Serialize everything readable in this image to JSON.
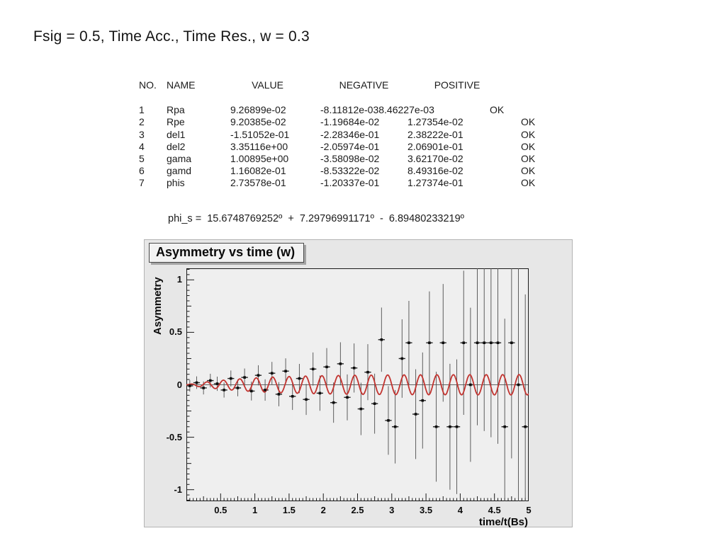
{
  "slide": {
    "title": "Fsig = 0.5, Time Acc., Time Res., w = 0.3"
  },
  "fit_table": {
    "headers": {
      "no": "NO.",
      "name": "NAME",
      "value": "VALUE",
      "negative": "NEGATIVE",
      "positive": "POSITIVE"
    },
    "rows": [
      {
        "no": "1",
        "name": "Rpa",
        "value": "9.26899e-02",
        "negative": "-8.11812e-03",
        "positive": "8.46227e-03",
        "status": "OK",
        "merged": true
      },
      {
        "no": "2",
        "name": "Rpe",
        "value": "9.20385e-02",
        "negative": "-1.19684e-02",
        "positive": "1.27354e-02",
        "status": "OK",
        "merged": false
      },
      {
        "no": "3",
        "name": "del1",
        "value": "-1.51052e-01",
        "negative": "-2.28346e-01",
        "positive": "2.38222e-01",
        "status": "OK",
        "merged": false
      },
      {
        "no": "4",
        "name": "del2",
        "value": "3.35116e+00",
        "negative": "-2.05974e-01",
        "positive": "2.06901e-01",
        "status": "OK",
        "merged": false
      },
      {
        "no": "5",
        "name": "gama",
        "value": "1.00895e+00",
        "negative": "-3.58098e-02",
        "positive": "3.62170e-02",
        "status": "OK",
        "merged": false
      },
      {
        "no": "6",
        "name": "gamd",
        "value": "1.16082e-01",
        "negative": "-8.53322e-02",
        "positive": "8.49316e-02",
        "status": "OK",
        "merged": false
      },
      {
        "no": "7",
        "name": "phis",
        "value": "2.73578e-01",
        "negative": "-1.20337e-01",
        "positive": "1.27374e-01",
        "status": "OK",
        "merged": false
      }
    ]
  },
  "phi_s_line": "phi_s =  15.6748769252º  +  7.29796991171º  -  6.89480233219º",
  "chart_data": {
    "type": "scatter",
    "title": "Asymmetry vs time (w)",
    "xlabel": "time/t(Bs)",
    "ylabel": "Asymmetry",
    "xlim": [
      0,
      5
    ],
    "ylim": [
      -1.11,
      1.11
    ],
    "x_major_ticks": [
      0.5,
      1,
      1.5,
      2,
      2.5,
      3,
      3.5,
      4,
      4.5,
      5
    ],
    "x_tick_labels": [
      "0.5",
      "1",
      "1.5",
      "2",
      "2.5",
      "3",
      "3.5",
      "4",
      "4.5",
      "5"
    ],
    "y_major_ticks": [
      1,
      0.5,
      0,
      -0.5,
      -1
    ],
    "y_tick_labels": [
      "1",
      "0.5",
      "0",
      "-0.5",
      "-1"
    ],
    "minor_tick_step": 0.05,
    "medium_tick_step": 0.25,
    "major_tick_step": 0.5,
    "grid": false,
    "zero_line": true,
    "legend": "none",
    "colors": {
      "canvas_bg": "#e7e7e7",
      "frame_bg": "#efefef",
      "frame_border": "#1a1a1a",
      "errorbar": "#4d4d4d",
      "marker": "#0d0d0d",
      "curve": "#c2332f"
    },
    "fit_curve": {
      "model": "y = A*(1-exp(-t/rise_tau))*sin(2*pi*t/period)",
      "amplitude": 0.097,
      "rise_tau": 0.9,
      "period": 0.24,
      "phase": 0
    },
    "data_series": {
      "xerr": 0.048,
      "x": [
        0.05,
        0.15,
        0.25,
        0.35,
        0.45,
        0.55,
        0.65,
        0.75,
        0.85,
        0.95,
        1.05,
        1.15,
        1.25,
        1.35,
        1.45,
        1.55,
        1.65,
        1.75,
        1.85,
        1.95,
        2.05,
        2.15,
        2.25,
        2.35,
        2.45,
        2.55,
        2.65,
        2.75,
        2.85,
        2.95,
        3.05,
        3.15,
        3.25,
        3.35,
        3.45,
        3.55,
        3.65,
        3.75,
        3.85,
        3.95,
        4.05,
        4.15,
        4.25,
        4.35,
        4.45,
        4.55,
        4.65,
        4.75,
        4.85,
        4.95
      ],
      "y": [
        -0.01,
        0.02,
        -0.03,
        0.04,
        0.01,
        -0.05,
        0.06,
        -0.03,
        0.07,
        -0.06,
        0.09,
        -0.05,
        0.11,
        -0.09,
        0.13,
        -0.11,
        0.06,
        -0.14,
        0.15,
        -0.08,
        0.17,
        -0.17,
        0.2,
        -0.12,
        0.16,
        -0.23,
        0.12,
        -0.18,
        0.43,
        -0.34,
        -0.4,
        0.25,
        0.4,
        -0.28,
        -0.15,
        0.4,
        -0.4,
        0.4,
        -0.4,
        -0.4,
        0.4,
        0.0,
        0.4,
        0.4,
        0.4,
        0.4,
        -0.4,
        0.4,
        0.0,
        -0.4
      ],
      "yerr": [
        0.055,
        0.06,
        0.062,
        0.065,
        0.068,
        0.072,
        0.076,
        0.08,
        0.085,
        0.09,
        0.096,
        0.102,
        0.108,
        0.115,
        0.122,
        0.13,
        0.139,
        0.148,
        0.158,
        0.168,
        0.18,
        0.192,
        0.205,
        0.219,
        0.234,
        0.25,
        0.267,
        0.286,
        0.306,
        0.327,
        0.35,
        0.374,
        0.4,
        0.428,
        0.458,
        0.49,
        0.524,
        0.561,
        0.6,
        0.642,
        0.687,
        0.735,
        0.786,
        0.841,
        0.9,
        0.963,
        1.03,
        1.102,
        1.179,
        1.261
      ]
    }
  }
}
